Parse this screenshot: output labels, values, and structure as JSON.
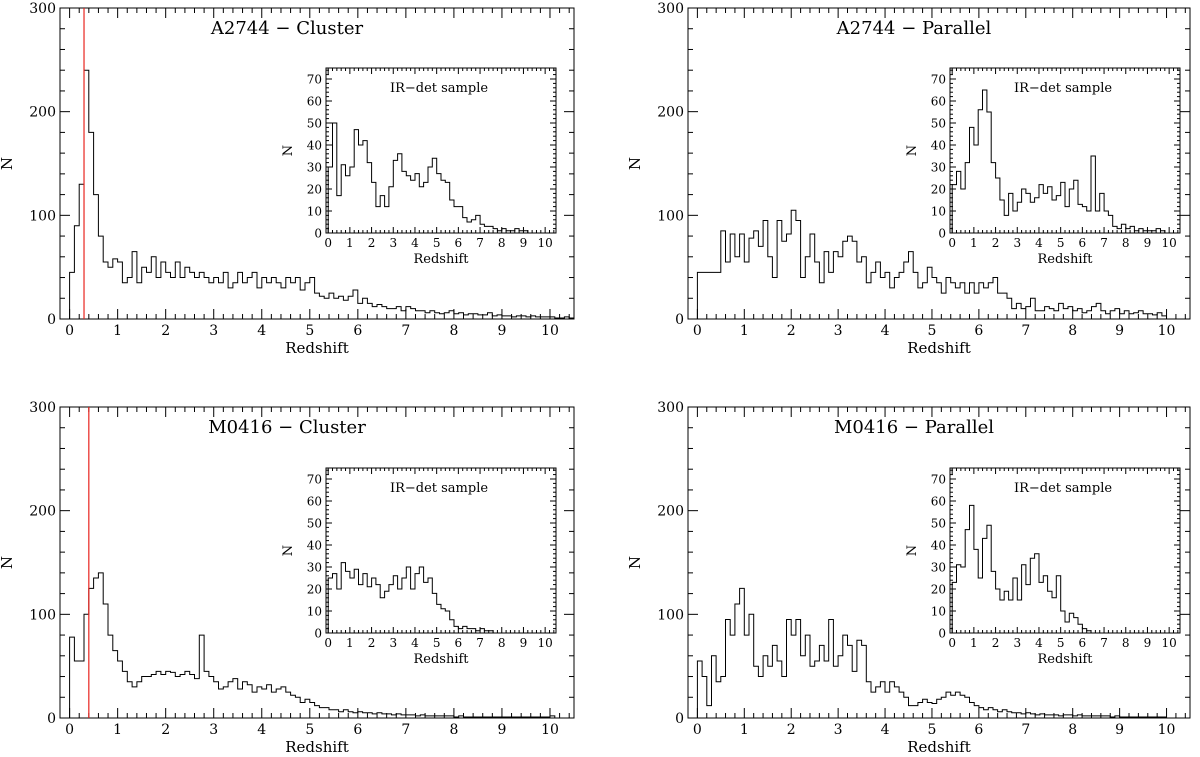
{
  "chart_data": [
    {
      "type": "histogram",
      "title": "A2744 − Cluster",
      "xlabel": "Redshift",
      "ylabel": "N",
      "xlim": [
        -0.2,
        10.5
      ],
      "ylim": [
        0,
        300
      ],
      "xticks": [
        "0",
        "1",
        "2",
        "3",
        "4",
        "5",
        "6",
        "7",
        "8",
        "9",
        "10"
      ],
      "yticks": [
        "0",
        "100",
        "200",
        "300"
      ],
      "cluster_redshift": 0.3,
      "bin_width": 0.1,
      "bin_start": 0,
      "values": [
        45,
        90,
        130,
        240,
        180,
        120,
        80,
        55,
        50,
        58,
        55,
        35,
        40,
        65,
        35,
        50,
        45,
        60,
        40,
        55,
        45,
        40,
        55,
        40,
        50,
        45,
        40,
        45,
        40,
        35,
        40,
        35,
        45,
        30,
        35,
        45,
        35,
        40,
        45,
        30,
        40,
        35,
        40,
        35,
        30,
        40,
        35,
        40,
        28,
        35,
        40,
        25,
        22,
        20,
        25,
        20,
        22,
        18,
        22,
        28,
        15,
        20,
        15,
        12,
        14,
        12,
        10,
        10,
        12,
        8,
        12,
        10,
        8,
        8,
        6,
        8,
        6,
        5,
        6,
        8,
        5,
        6,
        4,
        5,
        5,
        4,
        4,
        6,
        3,
        4,
        3,
        3,
        2,
        3,
        3,
        2,
        3,
        2,
        2,
        2,
        2,
        1,
        1,
        2,
        1
      ],
      "inset": {
        "title": "IR−det sample",
        "xlabel": "Redshift",
        "ylabel": "N",
        "xlim": [
          -0.1,
          10.5
        ],
        "ylim": [
          0,
          75
        ],
        "xticks": [
          "0",
          "1",
          "2",
          "3",
          "4",
          "5",
          "6",
          "7",
          "8",
          "9",
          "10"
        ],
        "yticks": [
          "0",
          "10",
          "20",
          "30",
          "40",
          "50",
          "60",
          "70"
        ],
        "bin_width": 0.2,
        "bin_start": 0,
        "values": [
          30,
          50,
          17,
          31,
          26,
          30,
          47,
          40,
          42,
          32,
          23,
          12,
          17,
          12,
          21,
          33,
          36,
          28,
          26,
          24,
          27,
          21,
          23,
          30,
          34,
          27,
          24,
          23,
          15,
          12,
          12,
          7,
          5,
          6,
          8,
          4,
          3,
          3,
          2,
          1,
          2,
          1,
          1,
          2,
          1,
          1,
          0,
          0,
          0,
          0,
          0,
          0,
          0
        ]
      }
    },
    {
      "type": "histogram",
      "title": "A2744 − Parallel",
      "xlabel": "Redshift",
      "ylabel": "N",
      "xlim": [
        -0.2,
        10.5
      ],
      "ylim": [
        0,
        300
      ],
      "xticks": [
        "0",
        "1",
        "2",
        "3",
        "4",
        "5",
        "6",
        "7",
        "8",
        "9",
        "10"
      ],
      "yticks": [
        "0",
        "100",
        "200",
        "300"
      ],
      "bin_width": 0.1,
      "bin_start": 0,
      "values": [
        45,
        45,
        45,
        45,
        45,
        85,
        55,
        82,
        60,
        82,
        55,
        78,
        85,
        70,
        95,
        60,
        40,
        95,
        75,
        82,
        105,
        95,
        40,
        60,
        82,
        55,
        35,
        65,
        45,
        65,
        60,
        75,
        80,
        75,
        55,
        60,
        35,
        45,
        55,
        40,
        45,
        30,
        40,
        45,
        55,
        65,
        45,
        30,
        35,
        50,
        40,
        35,
        25,
        40,
        35,
        30,
        35,
        25,
        35,
        25,
        35,
        30,
        35,
        40,
        25,
        25,
        20,
        10,
        15,
        10,
        12,
        20,
        8,
        8,
        12,
        10,
        8,
        15,
        10,
        12,
        8,
        10,
        6,
        8,
        12,
        15,
        8,
        5,
        8,
        10,
        5,
        8,
        5,
        6,
        8,
        5,
        5,
        4,
        6,
        3
      ],
      "inset": {
        "title": "IR−det sample",
        "xlabel": "Redshift",
        "ylabel": "N",
        "xlim": [
          -0.1,
          10.5
        ],
        "ylim": [
          0,
          75
        ],
        "xticks": [
          "0",
          "1",
          "2",
          "3",
          "4",
          "5",
          "6",
          "7",
          "8",
          "9",
          "10"
        ],
        "yticks": [
          "0",
          "10",
          "20",
          "30",
          "40",
          "50",
          "60",
          "70"
        ],
        "bin_width": 0.2,
        "bin_start": 0,
        "values": [
          22,
          28,
          20,
          32,
          48,
          40,
          56,
          65,
          55,
          32,
          25,
          15,
          8,
          18,
          10,
          14,
          20,
          18,
          14,
          16,
          22,
          18,
          21,
          15,
          17,
          23,
          12,
          20,
          24,
          13,
          12,
          10,
          35,
          10,
          18,
          10,
          8,
          3,
          2,
          4,
          2,
          3,
          1,
          2,
          1,
          1,
          1,
          2,
          1,
          0,
          0,
          0,
          0
        ]
      }
    },
    {
      "type": "histogram",
      "title": "M0416 − Cluster",
      "xlabel": "Redshift",
      "ylabel": "N",
      "xlim": [
        -0.2,
        10.5
      ],
      "ylim": [
        0,
        300
      ],
      "xticks": [
        "0",
        "1",
        "2",
        "3",
        "4",
        "5",
        "6",
        "7",
        "8",
        "9",
        "10"
      ],
      "yticks": [
        "0",
        "100",
        "200",
        "300"
      ],
      "cluster_redshift": 0.4,
      "bin_width": 0.1,
      "bin_start": 0,
      "values": [
        78,
        55,
        55,
        100,
        125,
        135,
        140,
        110,
        80,
        65,
        55,
        45,
        35,
        30,
        35,
        40,
        40,
        42,
        45,
        42,
        45,
        44,
        40,
        42,
        45,
        42,
        38,
        80,
        45,
        40,
        35,
        28,
        30,
        35,
        38,
        28,
        35,
        32,
        25,
        30,
        28,
        32,
        25,
        28,
        30,
        25,
        22,
        20,
        15,
        18,
        15,
        12,
        10,
        10,
        8,
        8,
        6,
        8,
        6,
        5,
        6,
        5,
        5,
        4,
        5,
        4,
        4,
        3,
        4,
        3,
        3,
        3,
        2,
        3,
        2,
        2,
        2,
        2,
        2,
        2,
        1,
        2,
        1,
        1,
        1,
        1,
        1,
        1,
        1,
        1,
        1,
        1,
        1,
        1,
        1,
        1,
        1,
        1,
        1,
        1,
        2
      ],
      "inset": {
        "title": "IR−det sample",
        "xlabel": "Redshift",
        "ylabel": "N",
        "xlim": [
          -0.1,
          10.5
        ],
        "ylim": [
          0,
          75
        ],
        "xticks": [
          "0",
          "1",
          "2",
          "3",
          "4",
          "5",
          "6",
          "7",
          "8",
          "9",
          "10"
        ],
        "yticks": [
          "0",
          "10",
          "20",
          "30",
          "40",
          "50",
          "60",
          "70"
        ],
        "bin_width": 0.2,
        "bin_start": 0,
        "values": [
          25,
          27,
          20,
          32,
          28,
          25,
          29,
          22,
          27,
          21,
          25,
          22,
          16,
          19,
          22,
          26,
          20,
          25,
          30,
          20,
          27,
          30,
          23,
          25,
          18,
          13,
          11,
          10,
          6,
          3,
          2,
          3,
          2,
          2,
          1,
          2,
          1,
          1,
          0,
          0,
          0,
          0,
          0,
          0,
          0,
          0,
          0,
          0,
          0,
          0,
          0,
          0,
          0
        ]
      }
    },
    {
      "type": "histogram",
      "title": "M0416 − Parallel",
      "xlabel": "Redshift",
      "ylabel": "N",
      "xlim": [
        -0.2,
        10.5
      ],
      "ylim": [
        0,
        300
      ],
      "xticks": [
        "0",
        "1",
        "2",
        "3",
        "4",
        "5",
        "6",
        "7",
        "8",
        "9",
        "10"
      ],
      "yticks": [
        "0",
        "100",
        "200",
        "300"
      ],
      "bin_width": 0.1,
      "bin_start": 0,
      "values": [
        55,
        40,
        12,
        60,
        35,
        40,
        95,
        80,
        110,
        125,
        80,
        100,
        50,
        40,
        60,
        50,
        70,
        55,
        40,
        95,
        80,
        95,
        60,
        80,
        50,
        55,
        70,
        55,
        95,
        50,
        60,
        80,
        70,
        45,
        75,
        70,
        35,
        25,
        30,
        35,
        25,
        35,
        30,
        25,
        20,
        12,
        12,
        15,
        18,
        15,
        14,
        18,
        20,
        25,
        22,
        25,
        22,
        20,
        15,
        12,
        10,
        8,
        10,
        8,
        6,
        8,
        6,
        5,
        5,
        4,
        5,
        4,
        3,
        4,
        3,
        3,
        3,
        2,
        3,
        3,
        2,
        3,
        2,
        2,
        2,
        2,
        2,
        2,
        1,
        2,
        1,
        1,
        1,
        1,
        1,
        1,
        1,
        1,
        1,
        1
      ],
      "inset": {
        "title": "IR−det sample",
        "xlabel": "Redshift",
        "ylabel": "N",
        "xlim": [
          -0.1,
          10.5
        ],
        "ylim": [
          0,
          75
        ],
        "xticks": [
          "0",
          "1",
          "2",
          "3",
          "4",
          "5",
          "6",
          "7",
          "8",
          "9",
          "10"
        ],
        "yticks": [
          "0",
          "10",
          "20",
          "30",
          "40",
          "50",
          "60",
          "70"
        ],
        "bin_width": 0.2,
        "bin_start": 0,
        "values": [
          23,
          31,
          30,
          47,
          58,
          38,
          25,
          43,
          49,
          28,
          20,
          15,
          19,
          15,
          25,
          15,
          31,
          22,
          34,
          36,
          23,
          26,
          19,
          16,
          26,
          10,
          5,
          9,
          7,
          4,
          2,
          1,
          0,
          0,
          0,
          0,
          0,
          0,
          0,
          0,
          0,
          0,
          0,
          0,
          0,
          0,
          0,
          0,
          0,
          0,
          0,
          0,
          0
        ]
      }
    }
  ]
}
